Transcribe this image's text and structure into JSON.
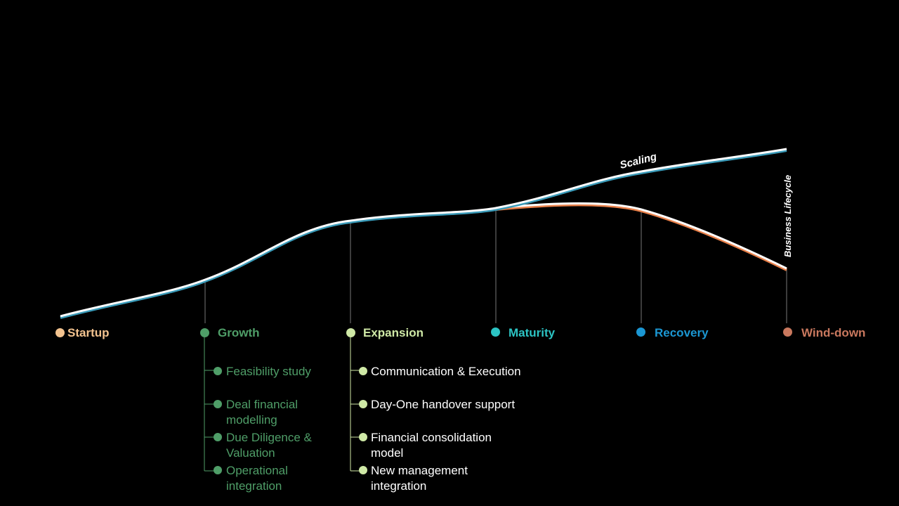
{
  "colors": {
    "background": "#000000",
    "curve": "#ffffff",
    "scaling_shadow": "#3a9ab8",
    "decline_shadow": "#e8804a",
    "startup": "#f3c38f",
    "growth": "#4f9e68",
    "expansion": "#cfe9a6",
    "maturity": "#2cc4c4",
    "recovery": "#1b97d3",
    "winddown": "#c9785e"
  },
  "curve_labels": {
    "scaling": "Scaling",
    "business_lifecycle": "Business Lifecycle"
  },
  "stages": [
    {
      "label": "Startup",
      "color": "#f3c38f"
    },
    {
      "label": "Growth",
      "color": "#4f9e68"
    },
    {
      "label": "Expansion",
      "color": "#cfe9a6"
    },
    {
      "label": "Maturity",
      "color": "#2cc4c4"
    },
    {
      "label": "Recovery",
      "color": "#1b97d3"
    },
    {
      "label": "Wind-down",
      "color": "#c9785e"
    }
  ],
  "growth_items": [
    "Feasibility study",
    "Deal financial modelling",
    "Due Diligence & Valuation",
    "Operational integration"
  ],
  "expansion_items": [
    "Communication & Execution",
    "Day-One handover support",
    "Financial consolidation model",
    "New management integration"
  ]
}
